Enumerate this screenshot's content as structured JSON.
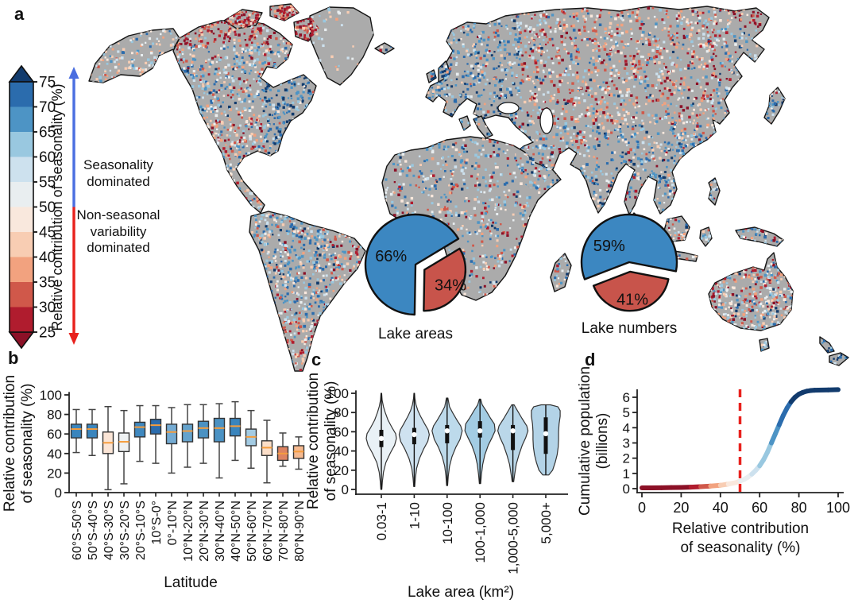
{
  "panel_labels": {
    "a": "a",
    "b": "b",
    "c": "c",
    "d": "d"
  },
  "colorbar": {
    "title": "Relative contribution of seasonality (%)",
    "ticks": [
      "75",
      "70",
      "65",
      "60",
      "55",
      "50",
      "45",
      "40",
      "35",
      "30",
      "25"
    ],
    "segments_top_to_bottom": [
      "#2b6cad",
      "#4d94c5",
      "#99c8e0",
      "#cde1ee",
      "#e9eef0",
      "#f9e8dd",
      "#f8cdb3",
      "#f2a27f",
      "#d0584a",
      "#b01c2e"
    ],
    "over_color": "#123b6d",
    "under_color": "#8c1127",
    "up_arrow_color": "#4a6ee0",
    "down_arrow_color": "#e8211d",
    "up_label": "Seasonality dominated",
    "down_label": "Non-seasonal variability dominated"
  },
  "map": {
    "land_color": "#ababab",
    "outline_color": "#141414"
  },
  "chart_data": [
    {
      "id": "a",
      "type": "heatmap",
      "description": "Global map of relative contribution of seasonality (%), RdBu palette over gray land",
      "pies": [
        {
          "caption": "Lake areas",
          "slices": [
            {
              "label": "66%",
              "value": 66,
              "color": "#3c87c1"
            },
            {
              "label": "34%",
              "value": 34,
              "color": "#c8544b"
            }
          ]
        },
        {
          "caption": "Lake numbers",
          "slices": [
            {
              "label": "59%",
              "value": 59,
              "color": "#3c87c1"
            },
            {
              "label": "41%",
              "value": 41,
              "color": "#c8544b"
            }
          ]
        }
      ]
    },
    {
      "id": "b",
      "type": "boxplot",
      "xlabel": "Latitude",
      "ylabel_lines": [
        "Relative contribution",
        "of seasonality (%)"
      ],
      "ylim": [
        0,
        100
      ],
      "yticks": [
        0,
        20,
        40,
        60,
        80,
        100
      ],
      "median_color": "#f59d3d",
      "categories": [
        "60°S-50°S",
        "50°S-40°S",
        "40°S-30°S",
        "30°S-20°S",
        "20°S-10°S",
        "10°S-0°",
        "0°-10°N",
        "10°N-20°N",
        "20°N-30°N",
        "30°N-40°N",
        "40°N-50°N",
        "50°N-60°N",
        "60°N-70°N",
        "70°N-80°N",
        "80°N-90°N"
      ],
      "boxes": [
        {
          "lo": 41,
          "q1": 56,
          "med": 65,
          "q3": 70,
          "hi": 85,
          "fill": "#3a85bd"
        },
        {
          "lo": 38,
          "q1": 56,
          "med": 65,
          "q3": 70,
          "hi": 85,
          "fill": "#3a85bd"
        },
        {
          "lo": 3,
          "q1": 40,
          "med": 51,
          "q3": 62,
          "hi": 88,
          "fill": "#fbe5d6"
        },
        {
          "lo": 9,
          "q1": 42,
          "med": 52,
          "q3": 61,
          "hi": 84,
          "fill": "#eef1f2"
        },
        {
          "lo": 32,
          "q1": 57,
          "med": 67,
          "q3": 72,
          "hi": 89,
          "fill": "#3f88bf"
        },
        {
          "lo": 30,
          "q1": 60,
          "med": 69,
          "q3": 75,
          "hi": 89,
          "fill": "#2b6cad"
        },
        {
          "lo": 20,
          "q1": 50,
          "med": 62,
          "q3": 70,
          "hi": 87,
          "fill": "#74abd3"
        },
        {
          "lo": 26,
          "q1": 52,
          "med": 63,
          "q3": 70,
          "hi": 90,
          "fill": "#65a3cd"
        },
        {
          "lo": 30,
          "q1": 56,
          "med": 66,
          "q3": 73,
          "hi": 90,
          "fill": "#4b92c3"
        },
        {
          "lo": 15,
          "q1": 52,
          "med": 66,
          "q3": 76,
          "hi": 91,
          "fill": "#4b92c3"
        },
        {
          "lo": 33,
          "q1": 58,
          "med": 68,
          "q3": 76,
          "hi": 93,
          "fill": "#3a85bd"
        },
        {
          "lo": 25,
          "q1": 48,
          "med": 57,
          "q3": 65,
          "hi": 84,
          "fill": "#a3cbe3"
        },
        {
          "lo": 10,
          "q1": 38,
          "med": 46,
          "q3": 53,
          "hi": 74,
          "fill": "#fbdec8"
        },
        {
          "lo": 27,
          "q1": 33,
          "med": 40,
          "q3": 47,
          "hi": 61,
          "fill": "#dd8361"
        },
        {
          "lo": 24,
          "q1": 35,
          "med": 42,
          "q3": 48,
          "hi": 57,
          "fill": "#f5b98f"
        }
      ]
    },
    {
      "id": "c",
      "type": "violin",
      "xlabel": "Lake area (km²)",
      "ylabel_lines": [
        "Relative contribution",
        "of seasonality (%)"
      ],
      "ylim": [
        0,
        100
      ],
      "yticks": [
        0,
        20,
        40,
        60,
        80,
        100
      ],
      "categories": [
        "0.03-1",
        "1-10",
        "10-100",
        "100-1,000",
        "1,000-5,000",
        "5,000+"
      ],
      "violins": [
        {
          "med": 53,
          "q1": 44,
          "q3": 62,
          "lo": 0,
          "hi": 100,
          "fill": "#e9f1f6",
          "profile": [
            [
              0,
              0.03
            ],
            [
              8,
              0.07
            ],
            [
              18,
              0.14
            ],
            [
              28,
              0.3
            ],
            [
              38,
              0.6
            ],
            [
              46,
              0.88
            ],
            [
              53,
              1.0
            ],
            [
              58,
              0.95
            ],
            [
              64,
              0.72
            ],
            [
              72,
              0.45
            ],
            [
              80,
              0.26
            ],
            [
              86,
              0.14
            ],
            [
              93,
              0.05
            ],
            [
              100,
              0.02
            ]
          ]
        },
        {
          "med": 57,
          "q1": 47,
          "q3": 64,
          "lo": 3,
          "hi": 100,
          "fill": "#cfe2f0",
          "profile": [
            [
              3,
              0.03
            ],
            [
              12,
              0.08
            ],
            [
              22,
              0.16
            ],
            [
              32,
              0.34
            ],
            [
              42,
              0.62
            ],
            [
              50,
              0.9
            ],
            [
              57,
              1.0
            ],
            [
              62,
              0.92
            ],
            [
              68,
              0.7
            ],
            [
              76,
              0.42
            ],
            [
              82,
              0.24
            ],
            [
              88,
              0.12
            ],
            [
              95,
              0.04
            ],
            [
              100,
              0.02
            ]
          ]
        },
        {
          "med": 61,
          "q1": 48,
          "q3": 67,
          "lo": 4,
          "hi": 95,
          "fill": "#bddaeb",
          "profile": [
            [
              4,
              0.03
            ],
            [
              14,
              0.08
            ],
            [
              24,
              0.16
            ],
            [
              34,
              0.32
            ],
            [
              44,
              0.58
            ],
            [
              52,
              0.85
            ],
            [
              61,
              1.0
            ],
            [
              66,
              0.9
            ],
            [
              72,
              0.66
            ],
            [
              80,
              0.36
            ],
            [
              86,
              0.16
            ],
            [
              95,
              0.05
            ]
          ]
        },
        {
          "med": 61,
          "q1": 54,
          "q3": 71,
          "lo": 6,
          "hi": 94,
          "fill": "#a3cce3",
          "profile": [
            [
              6,
              0.04
            ],
            [
              16,
              0.1
            ],
            [
              26,
              0.18
            ],
            [
              36,
              0.32
            ],
            [
              46,
              0.55
            ],
            [
              54,
              0.8
            ],
            [
              61,
              1.0
            ],
            [
              68,
              0.95
            ],
            [
              74,
              0.7
            ],
            [
              82,
              0.4
            ],
            [
              88,
              0.15
            ],
            [
              94,
              0.04
            ]
          ]
        },
        {
          "med": 61,
          "q1": 41,
          "q3": 67,
          "lo": 8,
          "hi": 88,
          "fill": "#bad7e9",
          "profile": [
            [
              8,
              0.05
            ],
            [
              16,
              0.12
            ],
            [
              26,
              0.22
            ],
            [
              36,
              0.4
            ],
            [
              46,
              0.62
            ],
            [
              54,
              0.85
            ],
            [
              61,
              1.0
            ],
            [
              66,
              0.92
            ],
            [
              74,
              0.6
            ],
            [
              82,
              0.3
            ],
            [
              88,
              0.08
            ]
          ]
        },
        {
          "med": 58,
          "q1": 37,
          "q3": 75,
          "lo": 15,
          "hi": 88,
          "fill": "#b3d3e7",
          "profile": [
            [
              15,
              0.2
            ],
            [
              20,
              0.45
            ],
            [
              28,
              0.62
            ],
            [
              36,
              0.75
            ],
            [
              44,
              0.82
            ],
            [
              52,
              0.85
            ],
            [
              60,
              0.85
            ],
            [
              68,
              0.88
            ],
            [
              76,
              0.95
            ],
            [
              82,
              0.95
            ],
            [
              86,
              0.8
            ],
            [
              88,
              0.3
            ]
          ]
        }
      ]
    },
    {
      "id": "d",
      "type": "line",
      "xlabel_lines": [
        "Relative contribution",
        "of seasonality (%)"
      ],
      "ylabel_lines": [
        "Cumulative population",
        "(billions)"
      ],
      "xlim": [
        0,
        100
      ],
      "ylim": [
        0,
        6.8
      ],
      "xticks": [
        0,
        20,
        40,
        60,
        80,
        100
      ],
      "yticks": [
        0,
        1,
        2,
        3,
        4,
        5,
        6
      ],
      "threshold_x": 50,
      "threshold_color": "#e8211d",
      "color_stops": [
        {
          "max": 25,
          "color": "#8c1127"
        },
        {
          "max": 30,
          "color": "#b01c2e"
        },
        {
          "max": 35,
          "color": "#d0584a"
        },
        {
          "max": 40,
          "color": "#f2a27f"
        },
        {
          "max": 45,
          "color": "#f8cdb3"
        },
        {
          "max": 50,
          "color": "#f9e8dd"
        },
        {
          "max": 55,
          "color": "#e9eef0"
        },
        {
          "max": 60,
          "color": "#cde1ee"
        },
        {
          "max": 65,
          "color": "#99c8e0"
        },
        {
          "max": 70,
          "color": "#4d94c5"
        },
        {
          "max": 75,
          "color": "#2b6cad"
        },
        {
          "max": 101,
          "color": "#123b6d"
        }
      ],
      "curve": [
        [
          0,
          0.05
        ],
        [
          5,
          0.05
        ],
        [
          10,
          0.06
        ],
        [
          15,
          0.07
        ],
        [
          20,
          0.08
        ],
        [
          25,
          0.1
        ],
        [
          30,
          0.13
        ],
        [
          35,
          0.17
        ],
        [
          40,
          0.22
        ],
        [
          44,
          0.3
        ],
        [
          48,
          0.4
        ],
        [
          50,
          0.5
        ],
        [
          52,
          0.6
        ],
        [
          54,
          0.75
        ],
        [
          56,
          0.95
        ],
        [
          58,
          1.2
        ],
        [
          60,
          1.5
        ],
        [
          62,
          1.9
        ],
        [
          64,
          2.4
        ],
        [
          66,
          3.0
        ],
        [
          68,
          3.6
        ],
        [
          70,
          4.2
        ],
        [
          72,
          4.8
        ],
        [
          74,
          5.3
        ],
        [
          76,
          5.7
        ],
        [
          78,
          6.0
        ],
        [
          80,
          6.2
        ],
        [
          82,
          6.32
        ],
        [
          84,
          6.4
        ],
        [
          86,
          6.44
        ],
        [
          88,
          6.46
        ],
        [
          90,
          6.47
        ],
        [
          95,
          6.48
        ],
        [
          100,
          6.5
        ]
      ]
    }
  ]
}
